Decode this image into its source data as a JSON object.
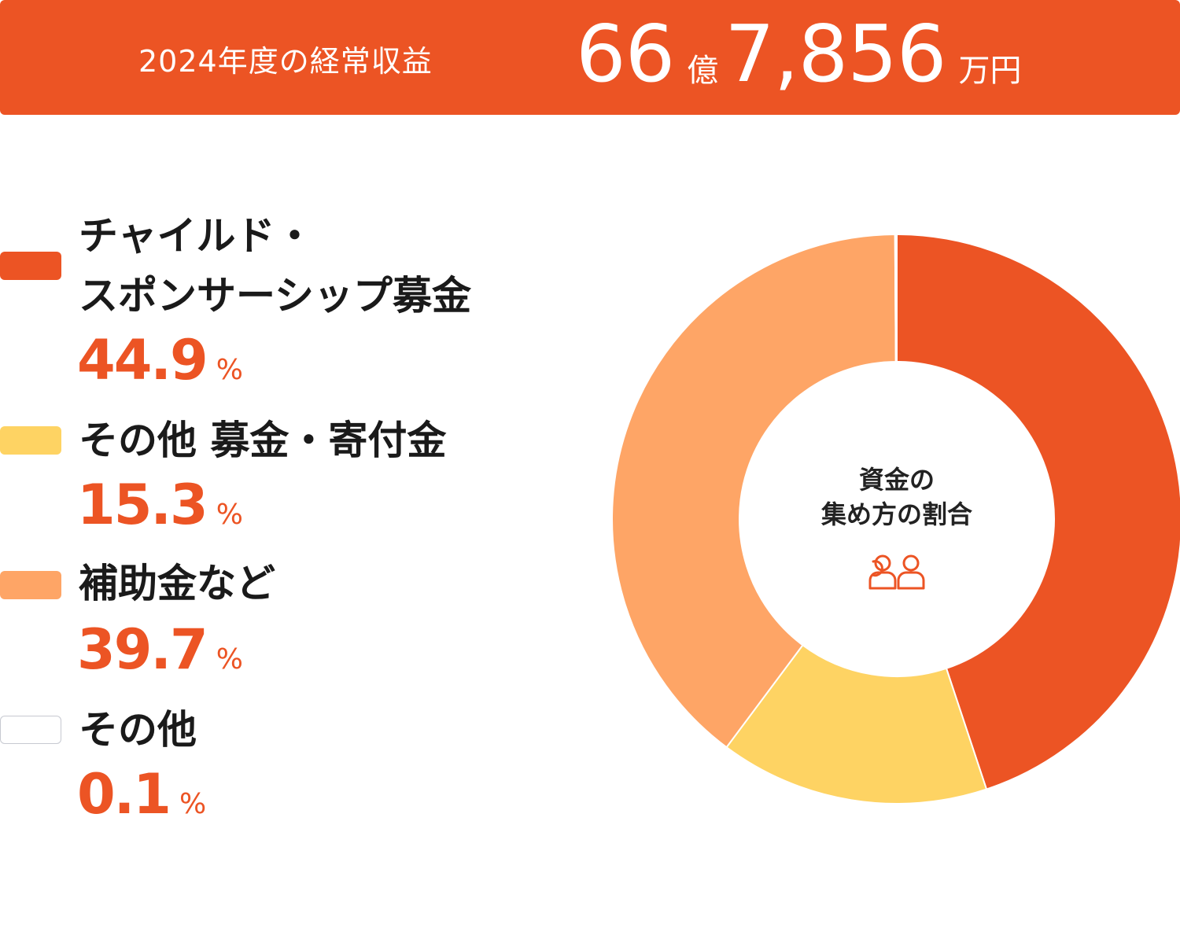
{
  "banner": {
    "label": "2024年度の経常収益",
    "amount_oku": "66",
    "unit_oku": "億",
    "amount_man": "7,856",
    "unit_man": "万円"
  },
  "colors": {
    "accent": "#EC5424",
    "child_sponsorship": "#EC5424",
    "other_donations": "#FED363",
    "grants": "#FEA566",
    "other": "#FFFFFF"
  },
  "chart_data": {
    "type": "pie",
    "style": "donut",
    "center_label_line1": "資金の",
    "center_label_line2": "集め方の割合",
    "center_icon": "people-icon",
    "unit": "%",
    "slices": [
      {
        "label_line1": "チャイルド・",
        "label_line2": "スポンサーシップ募金",
        "value": 44.9,
        "display": "44.9",
        "color": "#EC5424"
      },
      {
        "label_line1": "その他 募金・寄付金",
        "label_line2": "",
        "value": 15.3,
        "display": "15.3",
        "color": "#FED363"
      },
      {
        "label_line1": "補助金など",
        "label_line2": "",
        "value": 39.7,
        "display": "39.7",
        "color": "#FEA566"
      },
      {
        "label_line1": "その他",
        "label_line2": "",
        "value": 0.1,
        "display": "0.1",
        "color": "#FFFFFF"
      }
    ]
  }
}
